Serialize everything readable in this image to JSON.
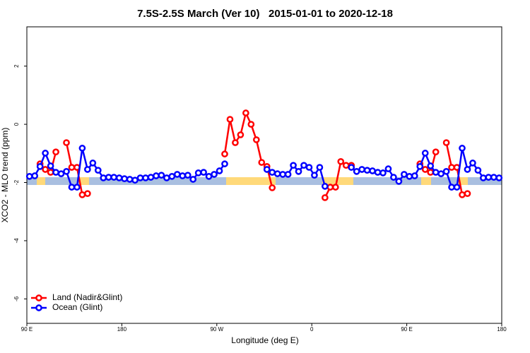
{
  "chart_data": {
    "type": "line",
    "title": "7.5S-2.5S March (Ver 10)   2015-01-01 to 2020-12-18",
    "x_label": "Longitude (deg E)",
    "y_label": "XCO2 - MLO trend (ppm)",
    "xlim": [
      90,
      540
    ],
    "ylim": [
      -6.84,
      3.35
    ],
    "xticks": [
      {
        "value": 90,
        "label": "90 E"
      },
      180,
      {
        "value": 270,
        "label": "90 W"
      },
      {
        "value": 360,
        "label": "0"
      },
      {
        "value": 450,
        "label": "90 E"
      },
      {
        "value": 540,
        "label": "180"
      }
    ],
    "yticks": [
      -6,
      -4,
      -2,
      0,
      2
    ],
    "legend": "bottomleft",
    "x": [
      92.5,
      97.5,
      102.5,
      107.5,
      112.5,
      117.5,
      122.5,
      127.5,
      132.5,
      137.5,
      142.5,
      147.5,
      152.5,
      157.5,
      162.5,
      167.5,
      172.5,
      177.5,
      182.5,
      187.5,
      192.5,
      197.5,
      202.5,
      207.5,
      212.5,
      217.5,
      222.5,
      227.5,
      232.5,
      237.5,
      242.5,
      247.5,
      252.5,
      257.5,
      262.5,
      267.5,
      272.5,
      277.5,
      282.5,
      287.5,
      292.5,
      297.5,
      302.5,
      307.5,
      312.5,
      317.5,
      322.5,
      327.5,
      332.5,
      337.5,
      342.5,
      347.5,
      352.5,
      357.5,
      362.5,
      367.5,
      372.5,
      377.5,
      382.5,
      387.5,
      392.5,
      397.5,
      402.5,
      407.5,
      412.5,
      417.5,
      422.5,
      427.5,
      432.5,
      437.5,
      442.5,
      447.5,
      452.5,
      457.5,
      462.5,
      467.5,
      472.5,
      477.5,
      482.5,
      487.5,
      492.5,
      497.5,
      502.5,
      507.5,
      512.5,
      517.5,
      522.5,
      527.5,
      532.5,
      537.5
    ],
    "series": [
      {
        "name": "Land (Nadir&Glint)",
        "color": "#ff0000",
        "values": [
          null,
          null,
          -1.36,
          -1.55,
          -1.65,
          -0.95,
          null,
          -0.63,
          -1.48,
          -1.48,
          -2.42,
          -2.38,
          null,
          null,
          null,
          null,
          null,
          null,
          null,
          null,
          null,
          null,
          null,
          null,
          null,
          null,
          null,
          null,
          null,
          null,
          null,
          null,
          null,
          null,
          null,
          null,
          null,
          -1.02,
          0.17,
          -0.63,
          -0.36,
          0.39,
          0.0,
          -0.53,
          -1.31,
          -1.45,
          -2.18,
          null,
          null,
          null,
          null,
          null,
          null,
          null,
          null,
          null,
          -2.52,
          -2.16,
          -2.16,
          -1.28,
          -1.41,
          -1.41,
          null,
          null,
          null,
          null,
          null,
          null,
          null,
          null,
          null,
          null,
          null,
          null,
          -1.36,
          -1.55,
          -1.65,
          -0.95,
          null,
          -0.63,
          -1.48,
          -1.48,
          -2.42,
          -2.38,
          null,
          null,
          null,
          null,
          null,
          null
        ]
      },
      {
        "name": "Ocean (Glint)",
        "color": "#0000ff",
        "values": [
          -1.79,
          -1.77,
          -1.45,
          -0.99,
          -1.43,
          -1.65,
          -1.7,
          -1.62,
          -2.16,
          -2.16,
          -0.82,
          -1.55,
          -1.33,
          -1.58,
          -1.84,
          -1.82,
          -1.82,
          -1.84,
          -1.87,
          -1.89,
          -1.92,
          -1.84,
          -1.84,
          -1.82,
          -1.77,
          -1.75,
          -1.84,
          -1.79,
          -1.72,
          -1.77,
          -1.75,
          -1.89,
          -1.67,
          -1.65,
          -1.79,
          -1.72,
          -1.6,
          -1.36,
          null,
          null,
          null,
          null,
          null,
          null,
          null,
          -1.55,
          -1.65,
          -1.7,
          -1.72,
          -1.72,
          -1.41,
          -1.62,
          -1.41,
          -1.48,
          -1.75,
          -1.48,
          -2.13,
          null,
          null,
          null,
          null,
          -1.48,
          -1.62,
          -1.55,
          -1.58,
          -1.6,
          -1.65,
          -1.67,
          -1.53,
          -1.82,
          -1.96,
          -1.72,
          -1.79,
          -1.77,
          -1.45,
          -0.99,
          -1.43,
          -1.65,
          -1.7,
          -1.62,
          -2.16,
          -2.16,
          -0.82,
          -1.55,
          -1.33,
          -1.58,
          -1.84,
          -1.82,
          -1.82,
          -1.84
        ]
      }
    ]
  }
}
